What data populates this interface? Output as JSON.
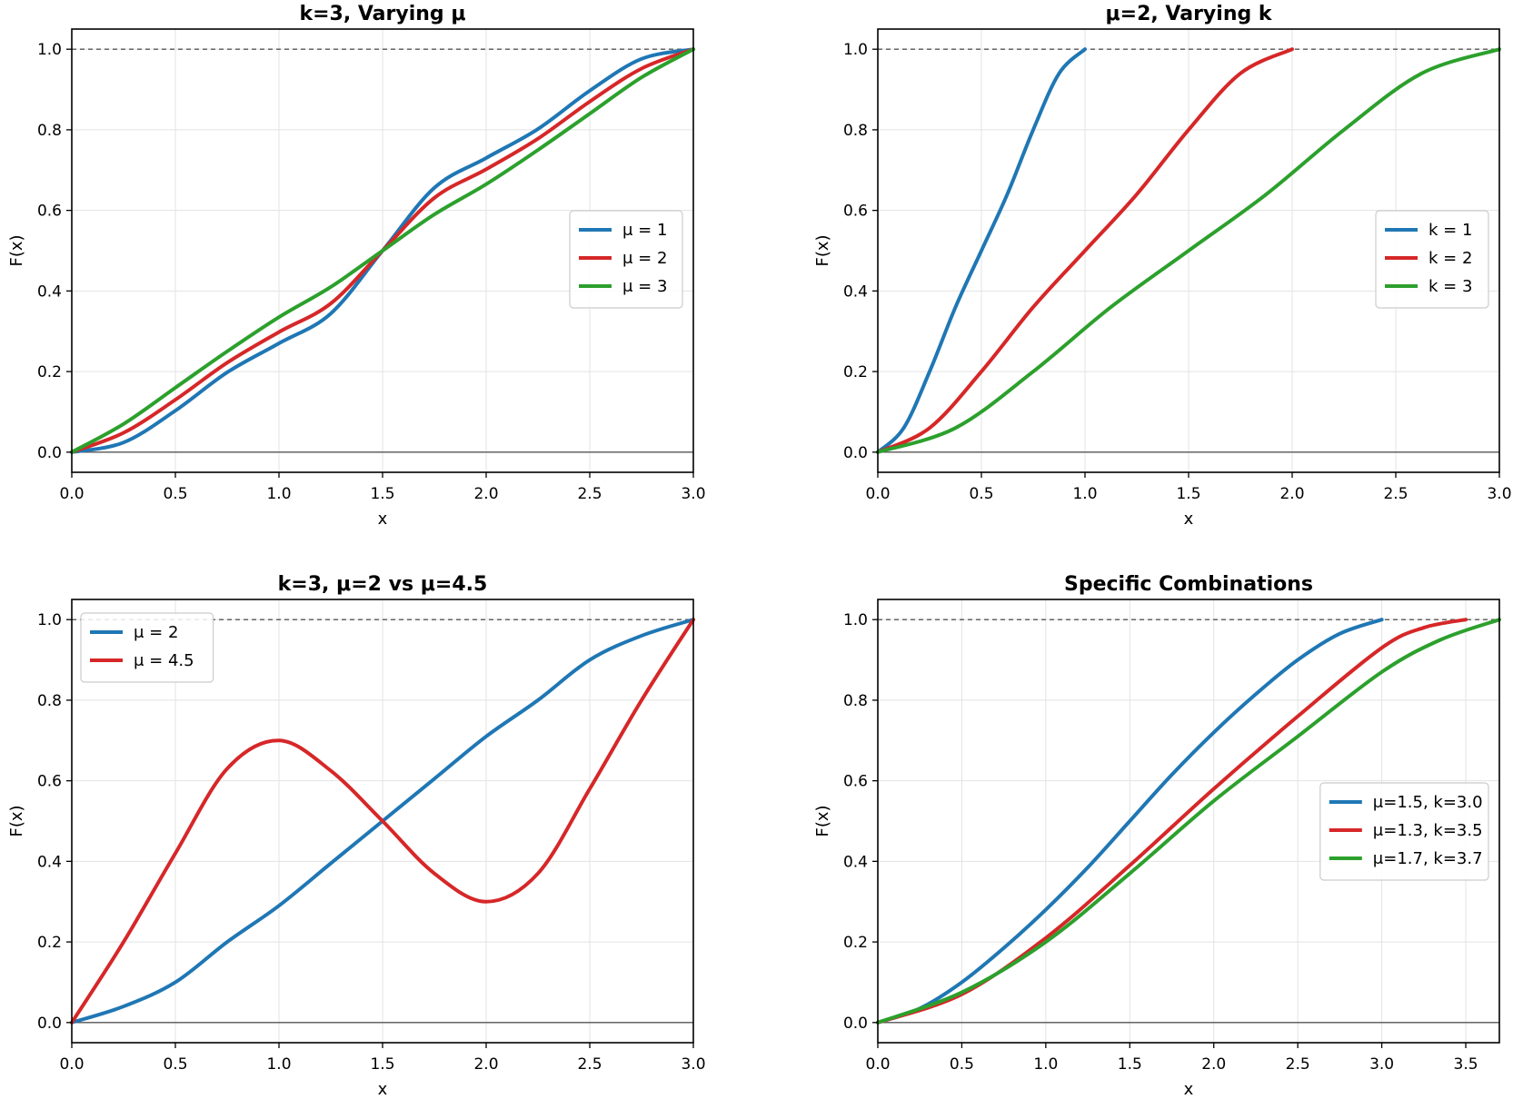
{
  "chart_data": [
    {
      "type": "line",
      "title": "k=3, Varying μ",
      "xlabel": "x",
      "ylabel": "F(x)",
      "xlim": [
        0,
        3.0
      ],
      "ylim": [
        -0.05,
        1.05
      ],
      "xticks": [
        "0.0",
        "0.5",
        "1.0",
        "1.5",
        "2.0",
        "2.5",
        "3.0"
      ],
      "yticks": [
        "0.0",
        "0.2",
        "0.4",
        "0.6",
        "0.8",
        "1.0"
      ],
      "grid": true,
      "reference_lines": [
        {
          "y": 1.0,
          "style": "dashed"
        },
        {
          "y": 0.0,
          "style": "solid"
        }
      ],
      "legend_position": "center-right",
      "series": [
        {
          "name": "μ = 1",
          "color": "#1f77b4",
          "x": [
            0,
            0.25,
            0.5,
            0.75,
            1.0,
            1.25,
            1.5,
            1.75,
            2.0,
            2.25,
            2.5,
            2.75,
            3.0
          ],
          "y": [
            0,
            0.024,
            0.103,
            0.198,
            0.27,
            0.344,
            0.5,
            0.656,
            0.73,
            0.802,
            0.897,
            0.976,
            1.0
          ]
        },
        {
          "name": "μ = 2",
          "color": "#d62728",
          "x": [
            0,
            0.25,
            0.5,
            0.75,
            1.0,
            1.25,
            1.5,
            1.75,
            2.0,
            2.25,
            2.5,
            2.75,
            3.0
          ],
          "y": [
            0,
            0.048,
            0.13,
            0.222,
            0.298,
            0.369,
            0.5,
            0.631,
            0.702,
            0.778,
            0.87,
            0.952,
            1.0
          ]
        },
        {
          "name": "μ = 3",
          "color": "#2ca02c",
          "x": [
            0,
            0.25,
            0.5,
            0.75,
            1.0,
            1.25,
            1.5,
            1.75,
            2.0,
            2.25,
            2.5,
            2.75,
            3.0
          ],
          "y": [
            0,
            0.07,
            0.16,
            0.25,
            0.335,
            0.41,
            0.5,
            0.59,
            0.665,
            0.75,
            0.84,
            0.93,
            1.0
          ]
        }
      ]
    },
    {
      "type": "line",
      "title": "μ=2, Varying k",
      "xlabel": "x",
      "ylabel": "F(x)",
      "xlim": [
        0,
        3.0
      ],
      "ylim": [
        -0.05,
        1.05
      ],
      "xticks": [
        "0.0",
        "0.5",
        "1.0",
        "1.5",
        "2.0",
        "2.5",
        "3.0"
      ],
      "yticks": [
        "0.0",
        "0.2",
        "0.4",
        "0.6",
        "0.8",
        "1.0"
      ],
      "grid": true,
      "reference_lines": [
        {
          "y": 1.0,
          "style": "dashed"
        },
        {
          "y": 0.0,
          "style": "solid"
        }
      ],
      "legend_position": "center-right",
      "series": [
        {
          "name": "k = 1",
          "color": "#1f77b4",
          "x": [
            0,
            0.125,
            0.25,
            0.375,
            0.5,
            0.625,
            0.75,
            0.875,
            1.0
          ],
          "y": [
            0,
            0.06,
            0.2,
            0.36,
            0.5,
            0.64,
            0.8,
            0.94,
            1.0
          ]
        },
        {
          "name": "k = 2",
          "color": "#d62728",
          "x": [
            0,
            0.25,
            0.5,
            0.75,
            1.0,
            1.25,
            1.5,
            1.75,
            2.0
          ],
          "y": [
            0,
            0.06,
            0.2,
            0.36,
            0.5,
            0.64,
            0.8,
            0.94,
            1.0
          ]
        },
        {
          "name": "k = 3",
          "color": "#2ca02c",
          "x": [
            0,
            0.375,
            0.75,
            1.125,
            1.5,
            1.875,
            2.25,
            2.625,
            3.0
          ],
          "y": [
            0,
            0.06,
            0.2,
            0.36,
            0.5,
            0.64,
            0.8,
            0.94,
            1.0
          ]
        }
      ]
    },
    {
      "type": "line",
      "title": "k=3, μ=2 vs μ=4.5",
      "xlabel": "x",
      "ylabel": "F(x)",
      "xlim": [
        0,
        3.0
      ],
      "ylim": [
        -0.05,
        1.05
      ],
      "xticks": [
        "0.0",
        "0.5",
        "1.0",
        "1.5",
        "2.0",
        "2.5",
        "3.0"
      ],
      "yticks": [
        "0.0",
        "0.2",
        "0.4",
        "0.6",
        "0.8",
        "1.0"
      ],
      "grid": true,
      "reference_lines": [
        {
          "y": 1.0,
          "style": "dashed"
        },
        {
          "y": 0.0,
          "style": "solid"
        }
      ],
      "legend_position": "upper-left",
      "series": [
        {
          "name": "μ = 2",
          "color": "#1f77b4",
          "x": [
            0,
            0.25,
            0.5,
            0.75,
            1.0,
            1.25,
            1.5,
            1.75,
            2.0,
            2.25,
            2.5,
            2.75,
            3.0
          ],
          "y": [
            0,
            0.04,
            0.1,
            0.2,
            0.29,
            0.395,
            0.5,
            0.605,
            0.71,
            0.8,
            0.9,
            0.96,
            1.0
          ]
        },
        {
          "name": "μ = 4.5",
          "color": "#d62728",
          "x": [
            0,
            0.25,
            0.5,
            0.75,
            1.0,
            1.25,
            1.5,
            1.75,
            2.0,
            2.25,
            2.5,
            2.75,
            3.0
          ],
          "y": [
            0,
            0.2,
            0.42,
            0.63,
            0.7,
            0.625,
            0.5,
            0.37,
            0.3,
            0.37,
            0.58,
            0.8,
            1.0
          ]
        }
      ]
    },
    {
      "type": "line",
      "title": "Specific Combinations",
      "xlabel": "x",
      "ylabel": "F(x)",
      "xlim": [
        0,
        3.7
      ],
      "ylim": [
        -0.05,
        1.05
      ],
      "xticks": [
        "0.0",
        "0.5",
        "1.0",
        "1.5",
        "2.0",
        "2.5",
        "3.0",
        "3.5"
      ],
      "yticks": [
        "0.0",
        "0.2",
        "0.4",
        "0.6",
        "0.8",
        "1.0"
      ],
      "grid": true,
      "reference_lines": [
        {
          "y": 1.0,
          "style": "dashed"
        },
        {
          "y": 0.0,
          "style": "solid"
        }
      ],
      "legend_position": "center-right",
      "series": [
        {
          "name": "μ=1.5, k=3.0",
          "color": "#1f77b4",
          "x": [
            0,
            0.25,
            0.5,
            0.75,
            1.0,
            1.25,
            1.5,
            1.75,
            2.0,
            2.25,
            2.5,
            2.75,
            3.0
          ],
          "y": [
            0,
            0.035,
            0.1,
            0.185,
            0.28,
            0.385,
            0.5,
            0.615,
            0.72,
            0.815,
            0.9,
            0.965,
            1.0
          ]
        },
        {
          "name": "μ=1.3, k=3.5",
          "color": "#d62728",
          "x": [
            0,
            0.5,
            1.0,
            1.5,
            2.0,
            2.5,
            3.0,
            3.25,
            3.5
          ],
          "y": [
            0,
            0.07,
            0.21,
            0.39,
            0.58,
            0.76,
            0.93,
            0.98,
            1.0
          ]
        },
        {
          "name": "μ=1.7, k=3.7",
          "color": "#2ca02c",
          "x": [
            0,
            0.5,
            1.0,
            1.5,
            2.0,
            2.5,
            3.0,
            3.35,
            3.7
          ],
          "y": [
            0,
            0.075,
            0.2,
            0.37,
            0.55,
            0.71,
            0.87,
            0.95,
            1.0
          ]
        }
      ]
    }
  ]
}
